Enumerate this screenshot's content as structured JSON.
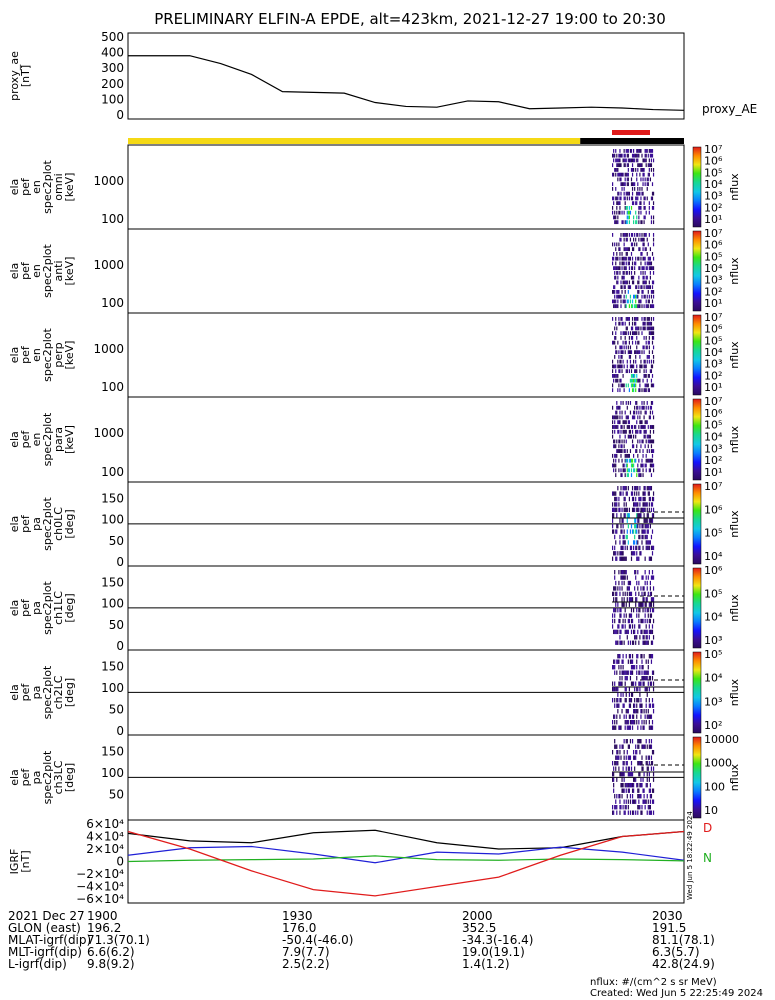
{
  "title": "PRELIMINARY ELFIN-A EPDE, alt=423km, 2021-12-27 19:00 to 20:30",
  "chart_data": {
    "type": "line",
    "x_axis": {
      "ticks": [
        "1900",
        "1930",
        "2000",
        "2030"
      ]
    },
    "panels": [
      {
        "id": "ae",
        "ylabel": [
          "proxy_ae",
          "[nT]"
        ],
        "yticks": [
          "500",
          "400",
          "300",
          "200",
          "100",
          "0"
        ],
        "ylim": [
          0,
          500
        ],
        "series_label": "proxy_AE",
        "series": [
          {
            "name": "proxy_AE",
            "x": [
              0,
              5,
              10,
              15,
              20,
              25,
              30,
              35,
              40,
              45,
              50,
              55,
              60,
              65,
              70,
              75,
              80,
              85,
              90
            ],
            "y": [
              380,
              380,
              380,
              330,
              260,
              150,
              145,
              140,
              80,
              55,
              50,
              90,
              85,
              40,
              45,
              50,
              45,
              35,
              30
            ]
          }
        ]
      },
      {
        "id": "omni",
        "ylabel": [
          "ela",
          "pef",
          "en",
          "spec2plot",
          "omni",
          "[keV]"
        ],
        "yticks": [
          "1000",
          "100"
        ],
        "colorbar": {
          "ticks": [
            "10^7",
            "10^6",
            "10^5",
            "10^4",
            "10^3",
            "10^2",
            "10^1"
          ],
          "label": "nflux"
        }
      },
      {
        "id": "anti",
        "ylabel": [
          "ela",
          "pef",
          "en",
          "spec2plot",
          "anti",
          "[keV]"
        ],
        "yticks": [
          "1000",
          "100"
        ],
        "colorbar": {
          "ticks": [
            "10^7",
            "10^6",
            "10^5",
            "10^4",
            "10^3",
            "10^2",
            "10^1"
          ],
          "label": "nflux"
        }
      },
      {
        "id": "perp",
        "ylabel": [
          "ela",
          "pef",
          "en",
          "spec2plot",
          "perp",
          "[keV]"
        ],
        "yticks": [
          "1000",
          "100"
        ],
        "colorbar": {
          "ticks": [
            "10^7",
            "10^6",
            "10^5",
            "10^4",
            "10^3",
            "10^2",
            "10^1"
          ],
          "label": "nflux"
        }
      },
      {
        "id": "para",
        "ylabel": [
          "ela",
          "pef",
          "en",
          "spec2plot",
          "para",
          "[keV]"
        ],
        "yticks": [
          "1000",
          "100"
        ],
        "colorbar": {
          "ticks": [
            "10^7",
            "10^6",
            "10^5",
            "10^4",
            "10^3",
            "10^2",
            "10^1"
          ],
          "label": "nflux"
        }
      },
      {
        "id": "ch0",
        "ylabel": [
          "ela",
          "pef",
          "pa",
          "spec2plot",
          "ch0LC",
          "[deg]"
        ],
        "yticks": [
          "150",
          "100",
          "50",
          "0"
        ],
        "colorbar": {
          "ticks": [
            "10^7",
            "10^6",
            "10^5",
            "10^4"
          ],
          "label": "nflux"
        }
      },
      {
        "id": "ch1",
        "ylabel": [
          "ela",
          "pef",
          "pa",
          "spec2plot",
          "ch1LC",
          "[deg]"
        ],
        "yticks": [
          "150",
          "100",
          "50",
          "0"
        ],
        "colorbar": {
          "ticks": [
            "10^6",
            "10^5",
            "10^4",
            "10^3"
          ],
          "label": "nflux"
        }
      },
      {
        "id": "ch2",
        "ylabel": [
          "ela",
          "pef",
          "pa",
          "spec2plot",
          "ch2LC",
          "[deg]"
        ],
        "yticks": [
          "150",
          "100",
          "50",
          "0"
        ],
        "colorbar": {
          "ticks": [
            "10^5",
            "10^4",
            "10^3",
            "10^2"
          ],
          "label": "nflux"
        }
      },
      {
        "id": "ch3",
        "ylabel": [
          "ela",
          "pef",
          "pa",
          "spec2plot",
          "ch3LC",
          "[deg]"
        ],
        "yticks": [
          "150",
          "100",
          "50"
        ],
        "colorbar": {
          "ticks": [
            "10000",
            "1000",
            "100",
            "10"
          ],
          "label": "nflux"
        }
      },
      {
        "id": "b",
        "ylabel": [
          "IGRF",
          "[nT]"
        ],
        "yticks": [
          "6×10^4",
          "4×10^4",
          "2×10^4",
          "0",
          "−2×10^4",
          "−4×10^4",
          "−6×10^4"
        ],
        "ylim": [
          -60000,
          60000
        ],
        "legend": [
          "D",
          "N"
        ],
        "series": [
          {
            "color": "#000000",
            "x": [
              0,
              10,
              20,
              30,
              40,
              50,
              60,
              70,
              80,
              90
            ],
            "y": [
              45000,
              33000,
              30000,
              46000,
              50000,
              30000,
              20000,
              22000,
              40000,
              48000
            ]
          },
          {
            "color": "#1f1fd6",
            "x": [
              0,
              10,
              20,
              30,
              40,
              50,
              60,
              70,
              80,
              90
            ],
            "y": [
              10000,
              22000,
              24000,
              12000,
              -2000,
              15000,
              12000,
              23000,
              15000,
              2000
            ]
          },
          {
            "color": "#22b022",
            "x": [
              0,
              10,
              20,
              30,
              40,
              50,
              60,
              70,
              80,
              90
            ],
            "y": [
              0,
              2000,
              3000,
              4000,
              9000,
              3000,
              2000,
              4000,
              3000,
              1000
            ]
          },
          {
            "color": "#e01b1b",
            "x": [
              0,
              10,
              20,
              30,
              40,
              50,
              60,
              70,
              80,
              90
            ],
            "y": [
              48000,
              20000,
              -15000,
              -45000,
              -55000,
              -40000,
              -25000,
              10000,
              40000,
              48000
            ]
          }
        ]
      }
    ]
  },
  "footer": {
    "rows": [
      {
        "label": "2021 Dec 27",
        "values": [
          "1900",
          "1930",
          "2000",
          "2030"
        ]
      },
      {
        "label": "GLON (east)",
        "values": [
          "196.2",
          "176.0",
          "352.5",
          "191.5"
        ]
      },
      {
        "label": "MLAT-igrf(dip)",
        "values": [
          "71.3(70.1)",
          "-50.4(-46.0)",
          "-34.3(-16.4)",
          "81.1(78.1)"
        ]
      },
      {
        "label": "MLT-igrf(dip)",
        "values": [
          "6.6(6.2)",
          "7.9(7.7)",
          "19.0(19.1)",
          "6.3(5.7)"
        ]
      },
      {
        "label": "L-igrf(dip)",
        "values": [
          "9.8(9.2)",
          "2.5(2.2)",
          "1.4(1.2)",
          "42.8(24.9)"
        ]
      }
    ],
    "unit_note": "nflux: #/(cm^2 s sr MeV)",
    "created": "Created: Wed Jun  5 22:25:49 2024",
    "side_stamp": "Wed Jun  5 18:22:49 2024"
  },
  "colors": {
    "day_bar": "#f5d915",
    "night_bar": "#000000",
    "marker": "#e01b1b"
  }
}
